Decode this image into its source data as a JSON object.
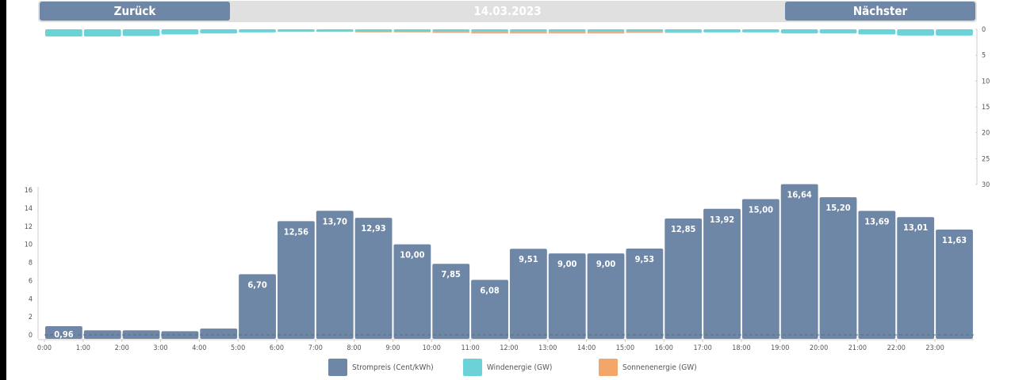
{
  "header": {
    "back_label": "Zurück",
    "date": "14.03.2023",
    "next_label": "Nächster"
  },
  "colors": {
    "price": "#6e87a6",
    "wind": "#6bd3d8",
    "solar": "#f2a66a",
    "nav_bar": "#e0e0e0"
  },
  "chart_data": [
    {
      "type": "bar",
      "categories": [
        "0:00",
        "1:00",
        "2:00",
        "3:00",
        "4:00",
        "5:00",
        "6:00",
        "7:00",
        "8:00",
        "9:00",
        "10:00",
        "11:00",
        "12:00",
        "13:00",
        "14:00",
        "15:00",
        "16:00",
        "17:00",
        "18:00",
        "19:00",
        "20:00",
        "21:00",
        "22:00",
        "23:00"
      ],
      "series": [
        {
          "name": "Windenergie (GW)",
          "values": [
            1.4,
            1.4,
            1.3,
            1.0,
            0.8,
            0.6,
            0.5,
            0.5,
            0.5,
            0.5,
            0.5,
            0.5,
            0.5,
            0.5,
            0.5,
            0.5,
            0.6,
            0.6,
            0.6,
            0.8,
            0.8,
            1.0,
            1.2,
            1.2
          ]
        },
        {
          "name": "Sonnenenergie (GW)",
          "values": [
            0,
            0,
            0,
            0,
            0,
            0,
            0,
            0,
            0.1,
            0.1,
            0.2,
            0.3,
            0.3,
            0.3,
            0.3,
            0.2,
            0.1,
            0,
            0,
            0,
            0,
            0,
            0,
            0
          ]
        }
      ],
      "ylim": [
        0,
        30
      ],
      "yticks": [
        0,
        5,
        10,
        15,
        20,
        25,
        30
      ],
      "stacked": true,
      "orientation": "downward"
    },
    {
      "type": "bar",
      "categories": [
        "0:00",
        "1:00",
        "2:00",
        "3:00",
        "4:00",
        "5:00",
        "6:00",
        "7:00",
        "8:00",
        "9:00",
        "10:00",
        "11:00",
        "12:00",
        "13:00",
        "14:00",
        "15:00",
        "16:00",
        "17:00",
        "18:00",
        "19:00",
        "20:00",
        "21:00",
        "22:00",
        "23:00"
      ],
      "series": [
        {
          "name": "Strompreis (Cent/kWh)",
          "values": [
            0.96,
            0.5,
            0.5,
            0.4,
            0.7,
            6.7,
            12.56,
            13.7,
            12.93,
            10.0,
            7.85,
            6.08,
            9.51,
            9.0,
            9.0,
            9.53,
            12.85,
            13.92,
            15.0,
            16.64,
            15.2,
            13.69,
            13.01,
            11.63
          ]
        }
      ],
      "data_labels": [
        "0,96",
        "",
        "",
        "",
        "",
        "6,70",
        "12,56",
        "13,70",
        "12,93",
        "10,00",
        "7,85",
        "6,08",
        "9,51",
        "9,00",
        "9,00",
        "9,53",
        "12,85",
        "13,92",
        "15,00",
        "16,64",
        "15,20",
        "13,69",
        "13,01",
        "11,63"
      ],
      "ylim": [
        0,
        16.8
      ],
      "yticks": [
        0,
        2,
        4,
        6,
        8,
        10,
        12,
        14,
        16
      ]
    }
  ],
  "legend": [
    {
      "label": "Strompreis (Cent/kWh)",
      "color": "#6e87a6"
    },
    {
      "label": "Windenergie (GW)",
      "color": "#6bd3d8"
    },
    {
      "label": "Sonnenenergie (GW)",
      "color": "#f2a66a"
    }
  ]
}
